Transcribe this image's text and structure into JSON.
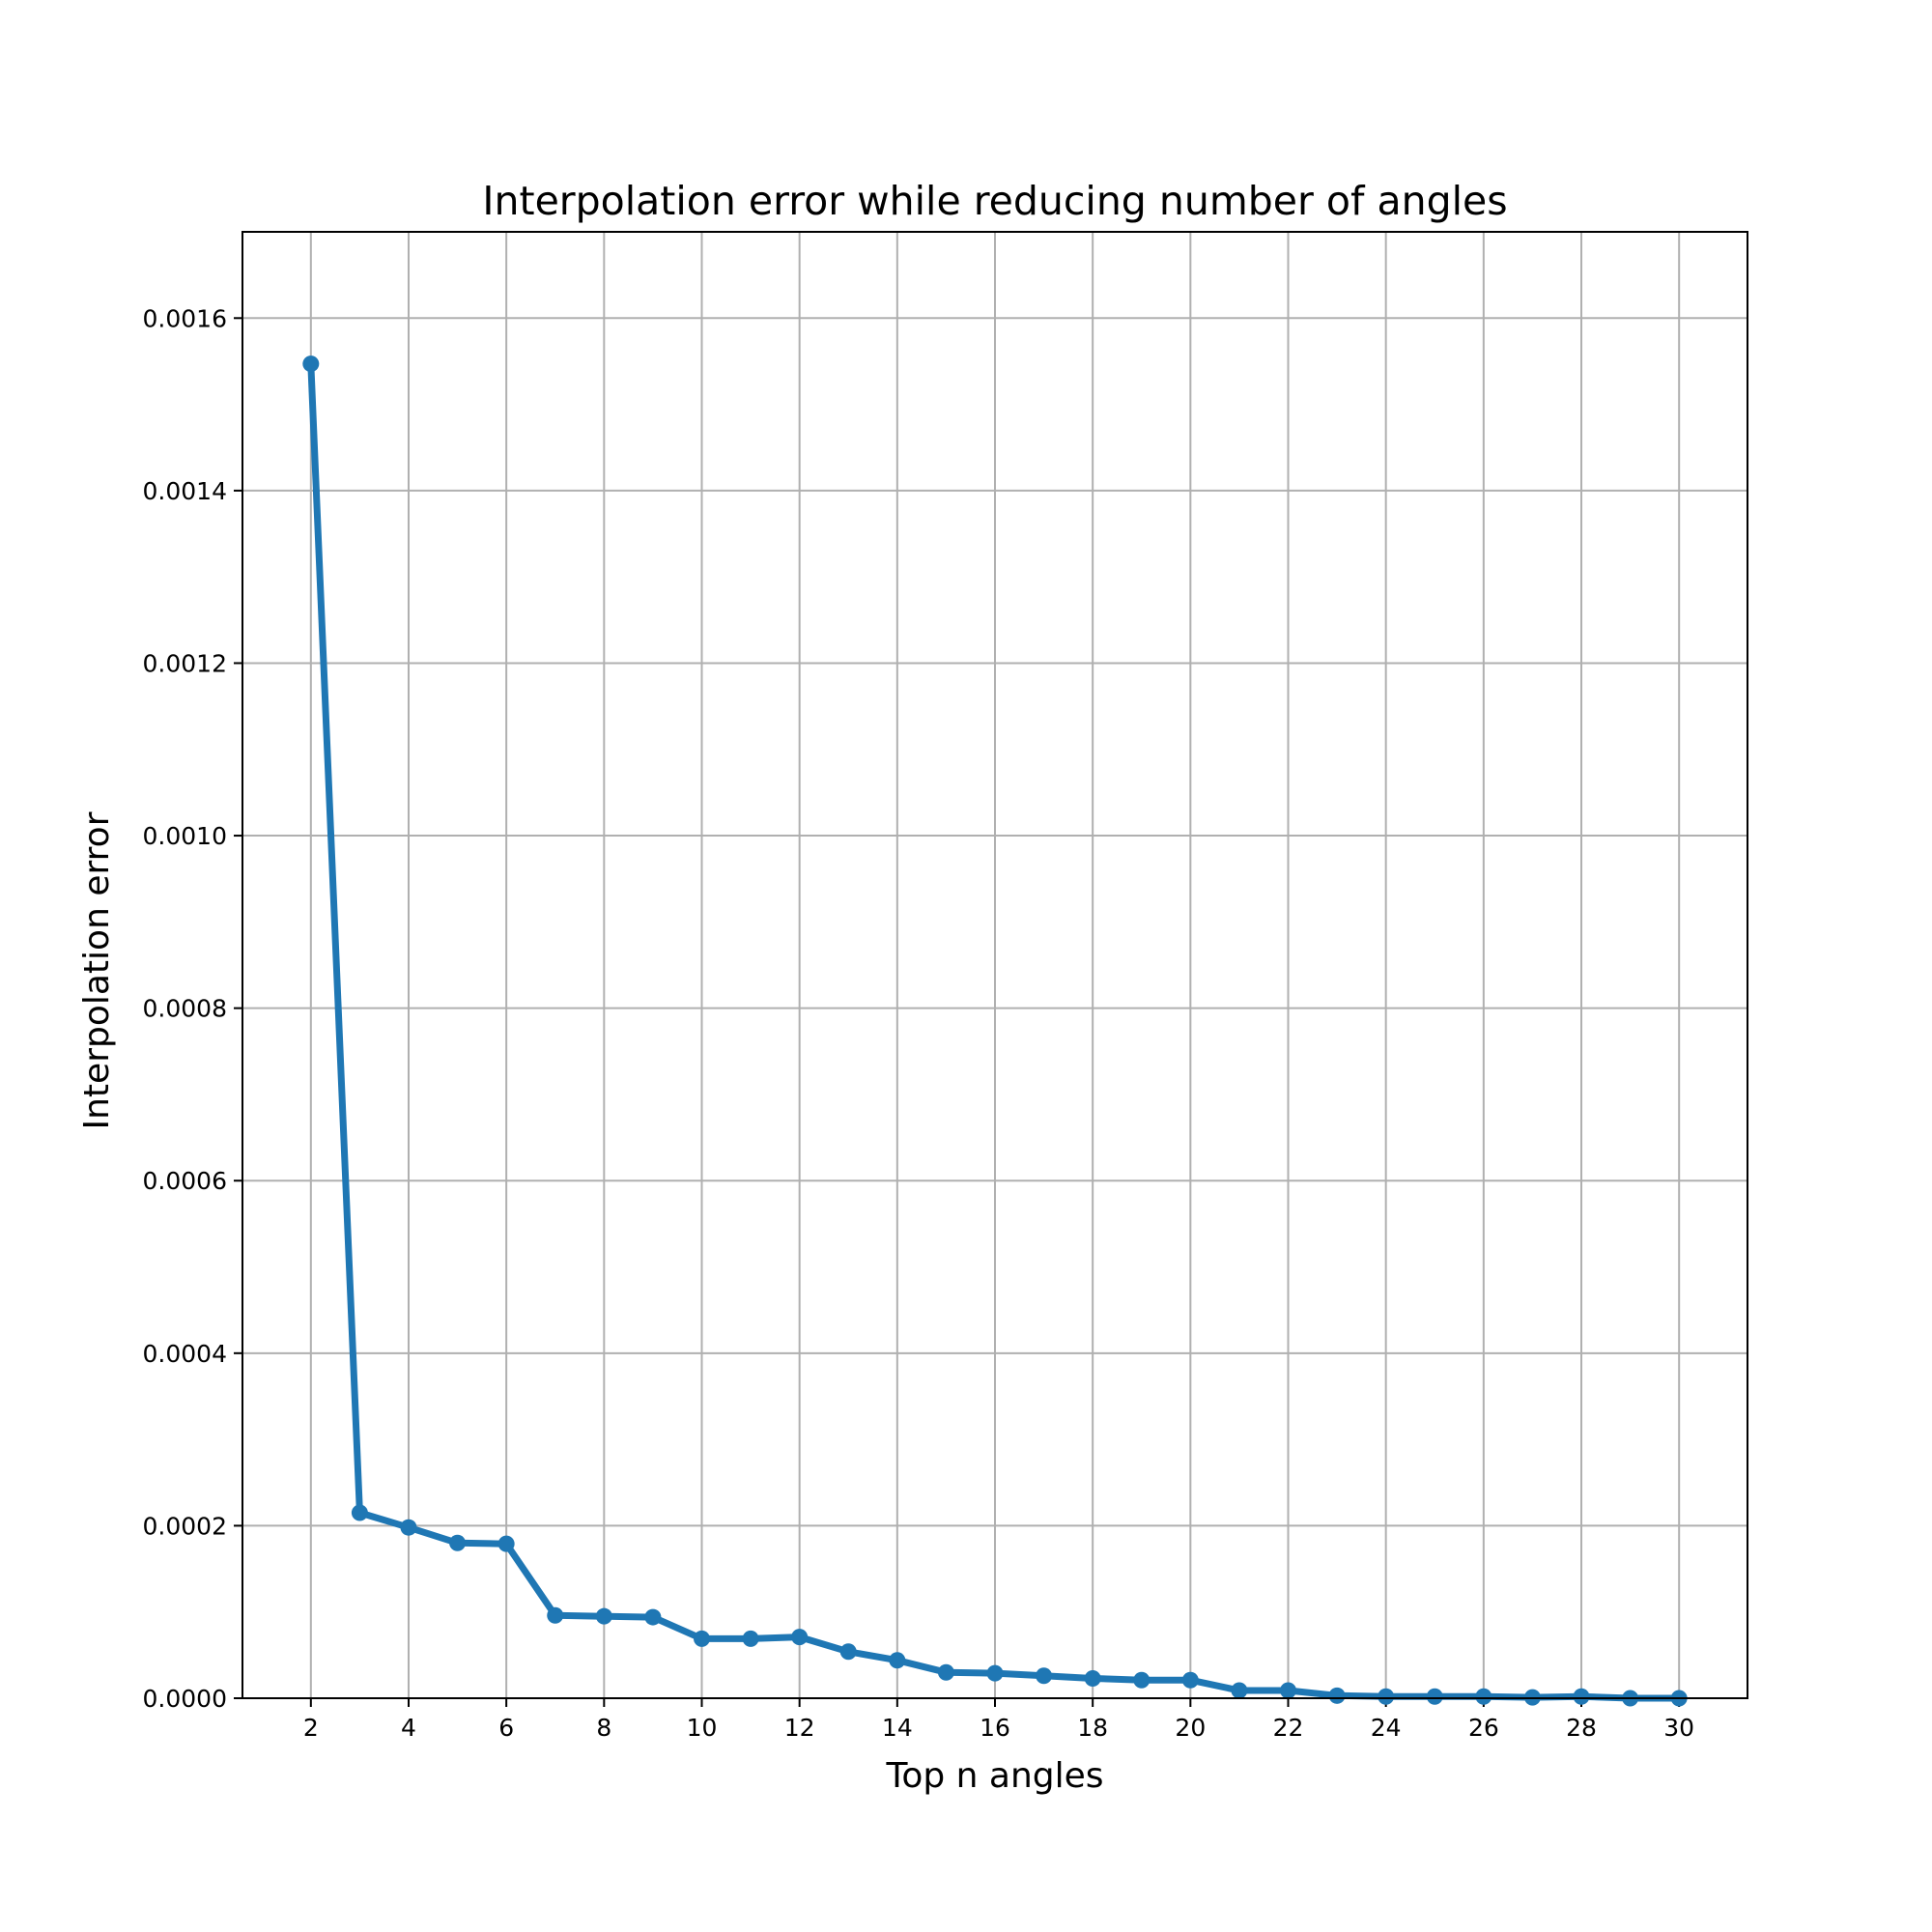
{
  "chart_data": {
    "type": "line",
    "title": "Interpolation error while reducing number of angles",
    "xlabel": "Top n angles",
    "ylabel": "Interpolation error",
    "xlim": [
      0.6,
      31.4
    ],
    "ylim": [
      0,
      0.0017
    ],
    "xticks": [
      2,
      4,
      6,
      8,
      10,
      12,
      14,
      16,
      18,
      20,
      22,
      24,
      26,
      28,
      30
    ],
    "yticks": [
      0.0,
      0.0002,
      0.0004,
      0.0006,
      0.0008,
      0.001,
      0.0012,
      0.0014,
      0.0016
    ],
    "xtick_labels": [
      "2",
      "4",
      "6",
      "8",
      "10",
      "12",
      "14",
      "16",
      "18",
      "20",
      "22",
      "24",
      "26",
      "28",
      "30"
    ],
    "ytick_labels": [
      "0.0000",
      "0.0002",
      "0.0004",
      "0.0006",
      "0.0008",
      "0.0010",
      "0.0012",
      "0.0014",
      "0.0016"
    ],
    "grid": true,
    "color": "#1f77b4",
    "series": [
      {
        "x": [
          2,
          3,
          4,
          5,
          6,
          7,
          8,
          9,
          10,
          11,
          12,
          13,
          14,
          15,
          16,
          17,
          18,
          19,
          20,
          21,
          22,
          23,
          24,
          25,
          26,
          27,
          28,
          29,
          30
        ],
        "values": [
          0.001547,
          0.000215,
          0.000198,
          0.00018,
          0.000179,
          9.6e-05,
          9.5e-05,
          9.4e-05,
          6.9e-05,
          6.9e-05,
          7.1e-05,
          5.4e-05,
          4.4e-05,
          3e-05,
          2.9e-05,
          2.6e-05,
          2.3e-05,
          2.1e-05,
          2.1e-05,
          9e-06,
          9e-06,
          3e-06,
          2e-06,
          2e-06,
          2e-06,
          1e-06,
          2e-06,
          0.0,
          0.0
        ]
      }
    ]
  }
}
